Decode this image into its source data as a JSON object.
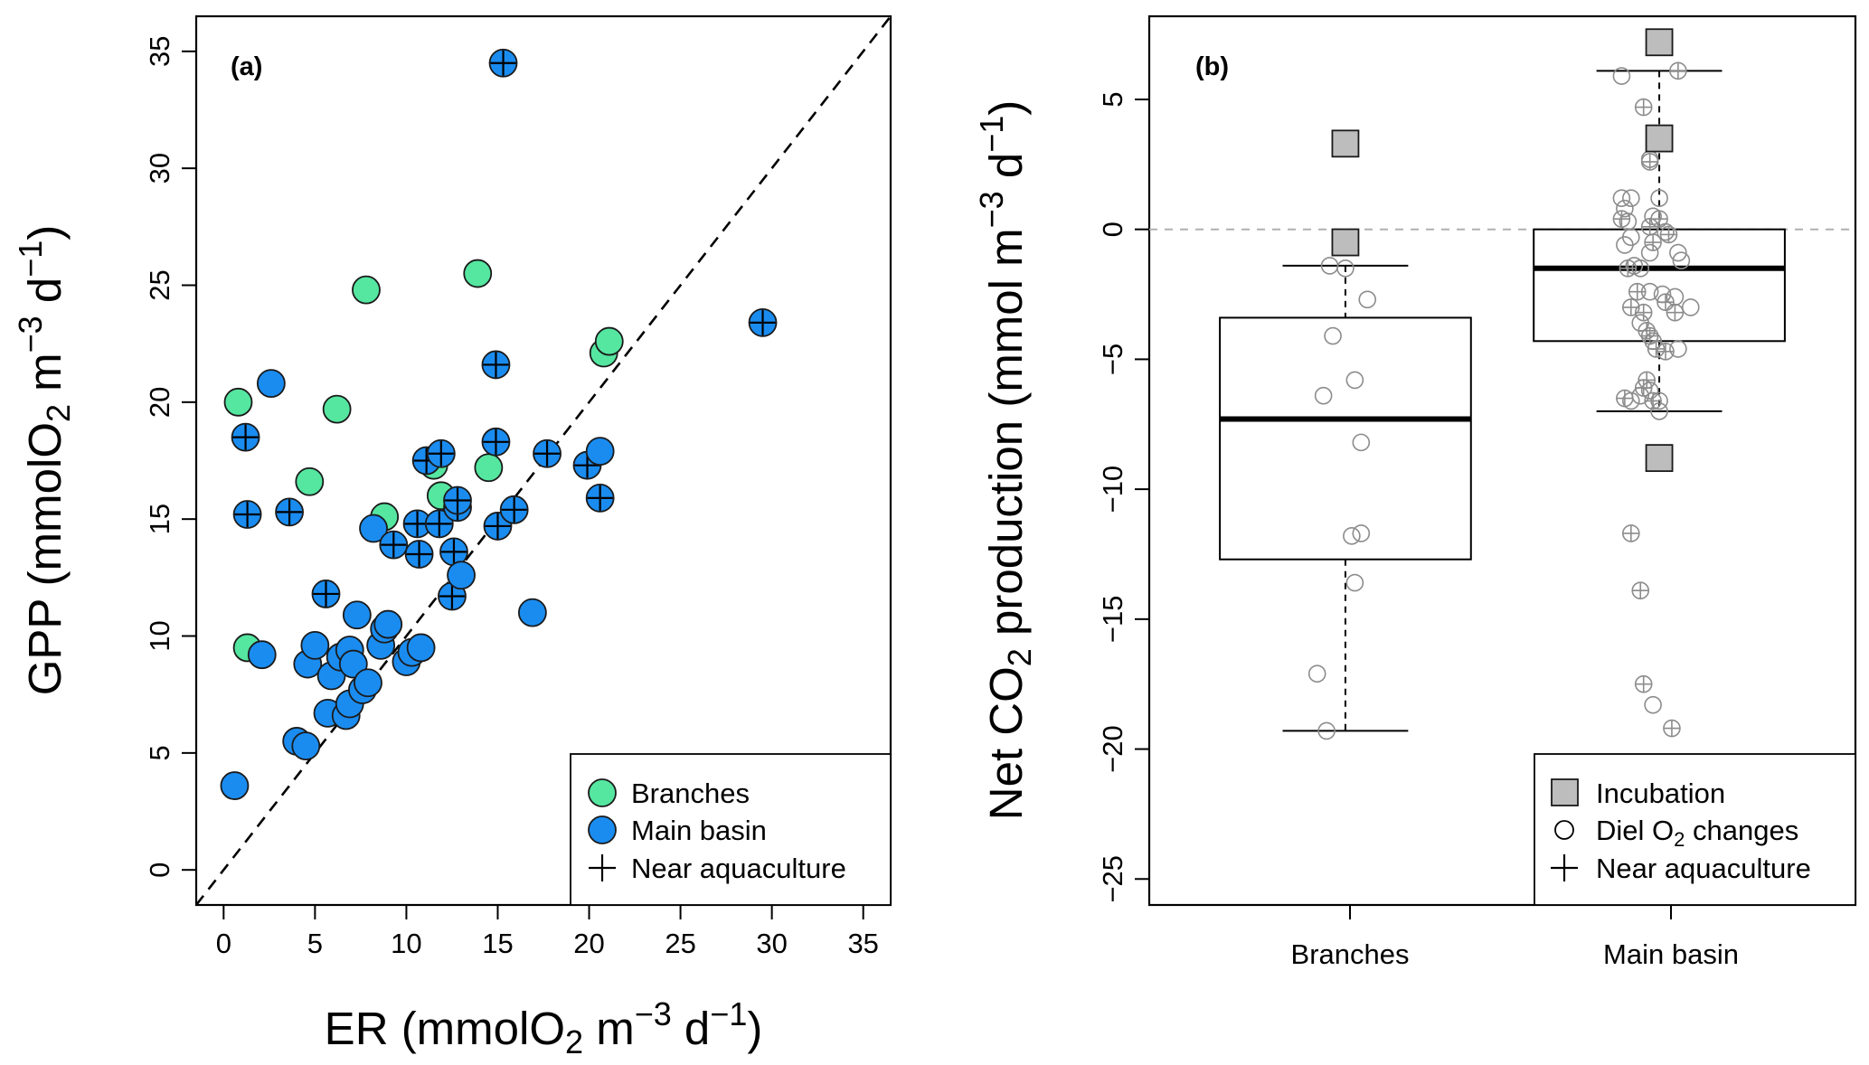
{
  "chart_data": [
    {
      "type": "scatter",
      "panel_label": "(a)",
      "xlabel": {
        "prefix": "ER (mmolO",
        "sub": "2",
        "mid": " m",
        "sup1": "−3",
        "mid2": " d",
        "sup2": "−1",
        "suffix": ")"
      },
      "ylabel": {
        "prefix": "GPP (mmolO",
        "sub": "2",
        "mid": " m",
        "sup1": "−3",
        "mid2": " d",
        "sup2": "−1",
        "suffix": ")"
      },
      "xlim": [
        -1.5,
        36.5
      ],
      "ylim": [
        -1.5,
        36.5
      ],
      "xticks": [
        "0",
        "5",
        "10",
        "15",
        "20",
        "25",
        "30",
        "35"
      ],
      "yticks": [
        "0",
        "5",
        "10",
        "15",
        "20",
        "25",
        "30",
        "35"
      ],
      "reference_line": "1:1 dashed",
      "colors": {
        "branches": "#55E6A0",
        "main_basin": "#1A8CF0",
        "outline": "#1a1a1a"
      },
      "legend": [
        "Branches",
        "Main basin",
        "Near aquaculture"
      ],
      "series": [
        {
          "name": "Branches",
          "points": [
            [
              0.8,
              20.0,
              0
            ],
            [
              1.3,
              9.5,
              0
            ],
            [
              4.7,
              16.6,
              0
            ],
            [
              6.2,
              19.7,
              0
            ],
            [
              7.8,
              24.8,
              0
            ],
            [
              8.8,
              15.1,
              0
            ],
            [
              11.5,
              17.3,
              0
            ],
            [
              11.9,
              16.0,
              0
            ],
            [
              13.9,
              25.5,
              0
            ],
            [
              14.5,
              17.2,
              0
            ],
            [
              20.8,
              22.1,
              0
            ],
            [
              21.1,
              22.6,
              0
            ]
          ]
        },
        {
          "name": "Main basin",
          "points": [
            [
              0.6,
              3.6,
              0
            ],
            [
              1.2,
              18.5,
              1
            ],
            [
              1.3,
              15.2,
              1
            ],
            [
              2.1,
              9.2,
              0
            ],
            [
              2.6,
              20.8,
              0
            ],
            [
              3.6,
              15.3,
              1
            ],
            [
              4.0,
              5.5,
              0
            ],
            [
              4.5,
              5.3,
              0
            ],
            [
              4.6,
              8.8,
              0
            ],
            [
              5.0,
              9.6,
              0
            ],
            [
              5.6,
              11.8,
              1
            ],
            [
              5.7,
              6.7,
              0
            ],
            [
              5.9,
              8.3,
              0
            ],
            [
              6.4,
              9.1,
              0
            ],
            [
              6.7,
              6.6,
              0
            ],
            [
              6.9,
              9.4,
              0
            ],
            [
              6.9,
              7.1,
              0
            ],
            [
              7.1,
              8.8,
              0
            ],
            [
              7.3,
              10.9,
              0
            ],
            [
              7.6,
              7.7,
              0
            ],
            [
              7.9,
              8.0,
              0
            ],
            [
              8.2,
              14.6,
              0
            ],
            [
              8.6,
              9.6,
              0
            ],
            [
              8.8,
              10.3,
              0
            ],
            [
              9.0,
              10.5,
              0
            ],
            [
              9.3,
              13.9,
              1
            ],
            [
              10.0,
              8.9,
              0
            ],
            [
              10.3,
              9.3,
              0
            ],
            [
              10.6,
              14.8,
              1
            ],
            [
              10.7,
              13.5,
              1
            ],
            [
              10.8,
              9.5,
              0
            ],
            [
              11.1,
              17.5,
              1
            ],
            [
              11.9,
              17.8,
              1
            ],
            [
              11.8,
              14.8,
              1
            ],
            [
              12.5,
              11.7,
              1
            ],
            [
              12.8,
              15.5,
              1
            ],
            [
              12.8,
              15.8,
              1
            ],
            [
              12.6,
              13.6,
              1
            ],
            [
              13.0,
              12.6,
              0
            ],
            [
              14.9,
              21.6,
              1
            ],
            [
              14.9,
              18.3,
              1
            ],
            [
              15.0,
              14.7,
              1
            ],
            [
              15.3,
              34.5,
              1
            ],
            [
              15.9,
              15.4,
              1
            ],
            [
              16.9,
              11.0,
              0
            ],
            [
              17.7,
              17.8,
              1
            ],
            [
              19.9,
              17.3,
              1
            ],
            [
              20.6,
              17.9,
              0
            ],
            [
              20.6,
              15.9,
              1
            ],
            [
              29.5,
              23.4,
              1
            ]
          ]
        }
      ]
    },
    {
      "type": "box",
      "panel_label": "(b)",
      "ylabel": {
        "prefix": "Net CO",
        "sub": "2",
        "mid": " production (mmol m",
        "sup1": "−3",
        "mid2": " d",
        "sup2": "−1",
        "suffix": ")"
      },
      "ylim": [
        -26,
        8.2
      ],
      "yticks": [
        "−25",
        "−20",
        "−15",
        "−10",
        "−5",
        "0",
        "5"
      ],
      "categories": [
        "Branches",
        "Main basin"
      ],
      "reference_line": "y = 0 dashed grey",
      "legend": [
        "Incubation",
        "Diel O₂ changes",
        "Near aquaculture"
      ],
      "legend_parts": {
        "diel_prefix": "Diel O",
        "diel_sub": "2",
        "diel_suffix": " changes"
      },
      "boxes": [
        {
          "name": "Branches",
          "whisker_low": -19.3,
          "q1": -12.7,
          "median": -7.3,
          "q3": -3.4,
          "whisker_high": -1.4
        },
        {
          "name": "Main basin",
          "whisker_low": -7.0,
          "q1": -4.3,
          "median": -1.5,
          "q3": 0.0,
          "whisker_high": 6.1
        }
      ],
      "incubation": [
        {
          "group": 1,
          "values": [
            3.3,
            -0.5
          ]
        },
        {
          "group": 2,
          "values": [
            7.2,
            3.5,
            -8.8
          ]
        }
      ],
      "diel": [
        {
          "group": 1,
          "points": [
            [
              -0.05,
              -1.4,
              0
            ],
            [
              0.0,
              -1.5,
              0
            ],
            [
              0.07,
              -2.7,
              0
            ],
            [
              -0.04,
              -4.1,
              0
            ],
            [
              0.03,
              -5.8,
              0
            ],
            [
              -0.07,
              -6.4,
              0
            ],
            [
              0.05,
              -8.2,
              0
            ],
            [
              0.02,
              -11.8,
              0
            ],
            [
              0.05,
              -11.7,
              0
            ],
            [
              0.03,
              -13.6,
              0
            ],
            [
              -0.09,
              -17.1,
              0
            ],
            [
              -0.06,
              -19.3,
              0
            ]
          ]
        },
        {
          "group": 2,
          "points": [
            [
              0.06,
              6.1,
              1
            ],
            [
              -0.12,
              5.9,
              0
            ],
            [
              -0.05,
              4.7,
              1
            ],
            [
              -0.03,
              2.7,
              0
            ],
            [
              -0.03,
              2.6,
              1
            ],
            [
              -0.12,
              1.2,
              0
            ],
            [
              -0.09,
              1.2,
              0
            ],
            [
              0.0,
              1.2,
              0
            ],
            [
              -0.11,
              0.8,
              0
            ],
            [
              -0.02,
              0.5,
              0
            ],
            [
              -0.12,
              0.4,
              1
            ],
            [
              -0.1,
              0.3,
              0
            ],
            [
              0.0,
              0.4,
              1
            ],
            [
              -0.03,
              0.1,
              1
            ],
            [
              0.02,
              -0.1,
              0
            ],
            [
              0.03,
              -0.2,
              1
            ],
            [
              -0.09,
              -0.3,
              0
            ],
            [
              -0.02,
              -0.5,
              1
            ],
            [
              -0.11,
              -0.6,
              0
            ],
            [
              -0.03,
              -0.9,
              0
            ],
            [
              0.06,
              -0.9,
              0
            ],
            [
              0.07,
              -1.2,
              0
            ],
            [
              -0.08,
              -1.4,
              0
            ],
            [
              -0.1,
              -1.5,
              1
            ],
            [
              -0.06,
              -1.5,
              0
            ],
            [
              -0.07,
              -2.4,
              1
            ],
            [
              -0.03,
              -2.4,
              0
            ],
            [
              0.01,
              -2.5,
              0
            ],
            [
              0.05,
              -2.6,
              0
            ],
            [
              0.02,
              -2.8,
              1
            ],
            [
              0.1,
              -3.0,
              0
            ],
            [
              -0.09,
              -3.0,
              1
            ],
            [
              -0.05,
              -3.2,
              1
            ],
            [
              0.05,
              -3.2,
              1
            ],
            [
              -0.06,
              -3.6,
              0
            ],
            [
              -0.04,
              -3.9,
              1
            ],
            [
              -0.03,
              -4.1,
              1
            ],
            [
              -0.02,
              -4.3,
              0
            ],
            [
              0.06,
              -4.6,
              0
            ],
            [
              -0.01,
              -4.6,
              1
            ],
            [
              0.02,
              -4.7,
              1
            ],
            [
              -0.04,
              -5.8,
              1
            ],
            [
              -0.05,
              -6.1,
              1
            ],
            [
              -0.03,
              -6.2,
              0
            ],
            [
              -0.11,
              -6.5,
              1
            ],
            [
              -0.09,
              -6.6,
              0
            ],
            [
              -0.06,
              -6.4,
              0
            ],
            [
              0.0,
              -6.6,
              0
            ],
            [
              -0.02,
              -6.6,
              1
            ],
            [
              0.0,
              -7.0,
              0
            ],
            [
              -0.09,
              -11.7,
              1
            ],
            [
              -0.06,
              -13.9,
              1
            ],
            [
              -0.05,
              -17.5,
              1
            ],
            [
              -0.02,
              -18.3,
              0
            ],
            [
              0.04,
              -19.2,
              1
            ]
          ]
        }
      ]
    }
  ]
}
